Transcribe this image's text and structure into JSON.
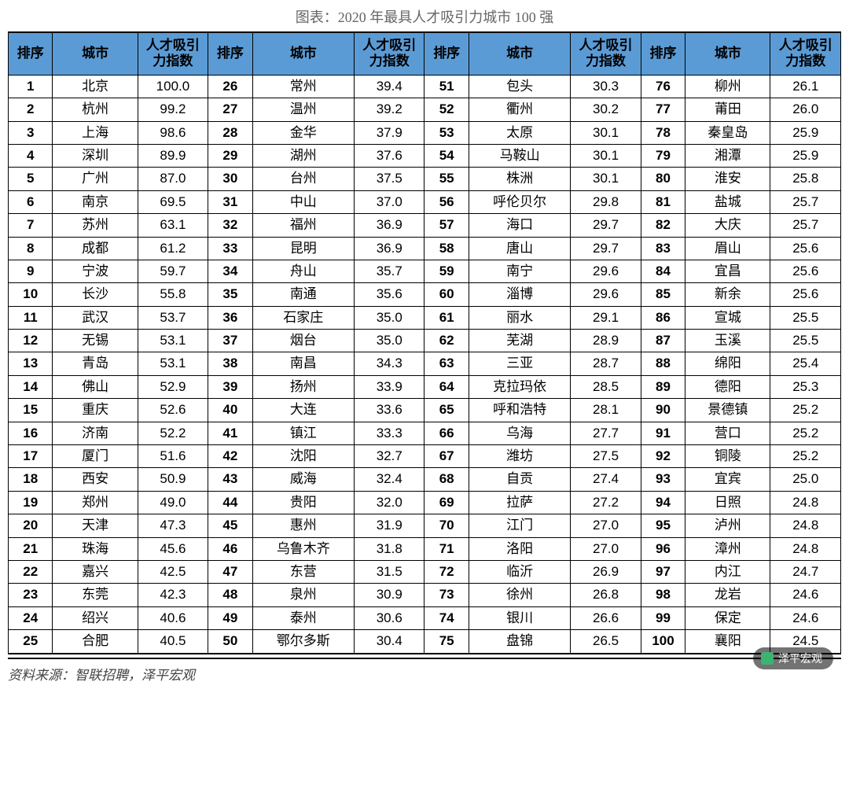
{
  "title": "图表：2020 年最具人才吸引力城市 100 强",
  "headers": {
    "rank": "排序",
    "city": "城市",
    "index": "人才吸引力指数"
  },
  "source": "资料来源：智联招聘，泽平宏观",
  "watermark": "泽平宏观",
  "colors": {
    "header_bg": "#5b9bd5",
    "border": "#000000",
    "title_text": "#666666",
    "body_bg": "#ffffff"
  },
  "rows": [
    {
      "r1": "1",
      "c1": "北京",
      "i1": "100.0",
      "r2": "26",
      "c2": "常州",
      "i2": "39.4",
      "r3": "51",
      "c3": "包头",
      "i3": "30.3",
      "r4": "76",
      "c4": "柳州",
      "i4": "26.1"
    },
    {
      "r1": "2",
      "c1": "杭州",
      "i1": "99.2",
      "r2": "27",
      "c2": "温州",
      "i2": "39.2",
      "r3": "52",
      "c3": "衢州",
      "i3": "30.2",
      "r4": "77",
      "c4": "莆田",
      "i4": "26.0"
    },
    {
      "r1": "3",
      "c1": "上海",
      "i1": "98.6",
      "r2": "28",
      "c2": "金华",
      "i2": "37.9",
      "r3": "53",
      "c3": "太原",
      "i3": "30.1",
      "r4": "78",
      "c4": "秦皇岛",
      "i4": "25.9"
    },
    {
      "r1": "4",
      "c1": "深圳",
      "i1": "89.9",
      "r2": "29",
      "c2": "湖州",
      "i2": "37.6",
      "r3": "54",
      "c3": "马鞍山",
      "i3": "30.1",
      "r4": "79",
      "c4": "湘潭",
      "i4": "25.9"
    },
    {
      "r1": "5",
      "c1": "广州",
      "i1": "87.0",
      "r2": "30",
      "c2": "台州",
      "i2": "37.5",
      "r3": "55",
      "c3": "株洲",
      "i3": "30.1",
      "r4": "80",
      "c4": "淮安",
      "i4": "25.8"
    },
    {
      "r1": "6",
      "c1": "南京",
      "i1": "69.5",
      "r2": "31",
      "c2": "中山",
      "i2": "37.0",
      "r3": "56",
      "c3": "呼伦贝尔",
      "i3": "29.8",
      "r4": "81",
      "c4": "盐城",
      "i4": "25.7"
    },
    {
      "r1": "7",
      "c1": "苏州",
      "i1": "63.1",
      "r2": "32",
      "c2": "福州",
      "i2": "36.9",
      "r3": "57",
      "c3": "海口",
      "i3": "29.7",
      "r4": "82",
      "c4": "大庆",
      "i4": "25.7"
    },
    {
      "r1": "8",
      "c1": "成都",
      "i1": "61.2",
      "r2": "33",
      "c2": "昆明",
      "i2": "36.9",
      "r3": "58",
      "c3": "唐山",
      "i3": "29.7",
      "r4": "83",
      "c4": "眉山",
      "i4": "25.6"
    },
    {
      "r1": "9",
      "c1": "宁波",
      "i1": "59.7",
      "r2": "34",
      "c2": "舟山",
      "i2": "35.7",
      "r3": "59",
      "c3": "南宁",
      "i3": "29.6",
      "r4": "84",
      "c4": "宜昌",
      "i4": "25.6"
    },
    {
      "r1": "10",
      "c1": "长沙",
      "i1": "55.8",
      "r2": "35",
      "c2": "南通",
      "i2": "35.6",
      "r3": "60",
      "c3": "淄博",
      "i3": "29.6",
      "r4": "85",
      "c4": "新余",
      "i4": "25.6"
    },
    {
      "r1": "11",
      "c1": "武汉",
      "i1": "53.7",
      "r2": "36",
      "c2": "石家庄",
      "i2": "35.0",
      "r3": "61",
      "c3": "丽水",
      "i3": "29.1",
      "r4": "86",
      "c4": "宣城",
      "i4": "25.5"
    },
    {
      "r1": "12",
      "c1": "无锡",
      "i1": "53.1",
      "r2": "37",
      "c2": "烟台",
      "i2": "35.0",
      "r3": "62",
      "c3": "芜湖",
      "i3": "28.9",
      "r4": "87",
      "c4": "玉溪",
      "i4": "25.5"
    },
    {
      "r1": "13",
      "c1": "青岛",
      "i1": "53.1",
      "r2": "38",
      "c2": "南昌",
      "i2": "34.3",
      "r3": "63",
      "c3": "三亚",
      "i3": "28.7",
      "r4": "88",
      "c4": "绵阳",
      "i4": "25.4"
    },
    {
      "r1": "14",
      "c1": "佛山",
      "i1": "52.9",
      "r2": "39",
      "c2": "扬州",
      "i2": "33.9",
      "r3": "64",
      "c3": "克拉玛依",
      "i3": "28.5",
      "r4": "89",
      "c4": "德阳",
      "i4": "25.3"
    },
    {
      "r1": "15",
      "c1": "重庆",
      "i1": "52.6",
      "r2": "40",
      "c2": "大连",
      "i2": "33.6",
      "r3": "65",
      "c3": "呼和浩特",
      "i3": "28.1",
      "r4": "90",
      "c4": "景德镇",
      "i4": "25.2"
    },
    {
      "r1": "16",
      "c1": "济南",
      "i1": "52.2",
      "r2": "41",
      "c2": "镇江",
      "i2": "33.3",
      "r3": "66",
      "c3": "乌海",
      "i3": "27.7",
      "r4": "91",
      "c4": "营口",
      "i4": "25.2"
    },
    {
      "r1": "17",
      "c1": "厦门",
      "i1": "51.6",
      "r2": "42",
      "c2": "沈阳",
      "i2": "32.7",
      "r3": "67",
      "c3": "潍坊",
      "i3": "27.5",
      "r4": "92",
      "c4": "铜陵",
      "i4": "25.2"
    },
    {
      "r1": "18",
      "c1": "西安",
      "i1": "50.9",
      "r2": "43",
      "c2": "威海",
      "i2": "32.4",
      "r3": "68",
      "c3": "自贡",
      "i3": "27.4",
      "r4": "93",
      "c4": "宜宾",
      "i4": "25.0"
    },
    {
      "r1": "19",
      "c1": "郑州",
      "i1": "49.0",
      "r2": "44",
      "c2": "贵阳",
      "i2": "32.0",
      "r3": "69",
      "c3": "拉萨",
      "i3": "27.2",
      "r4": "94",
      "c4": "日照",
      "i4": "24.8"
    },
    {
      "r1": "20",
      "c1": "天津",
      "i1": "47.3",
      "r2": "45",
      "c2": "惠州",
      "i2": "31.9",
      "r3": "70",
      "c3": "江门",
      "i3": "27.0",
      "r4": "95",
      "c4": "泸州",
      "i4": "24.8"
    },
    {
      "r1": "21",
      "c1": "珠海",
      "i1": "45.6",
      "r2": "46",
      "c2": "乌鲁木齐",
      "i2": "31.8",
      "r3": "71",
      "c3": "洛阳",
      "i3": "27.0",
      "r4": "96",
      "c4": "漳州",
      "i4": "24.8"
    },
    {
      "r1": "22",
      "c1": "嘉兴",
      "i1": "42.5",
      "r2": "47",
      "c2": "东营",
      "i2": "31.5",
      "r3": "72",
      "c3": "临沂",
      "i3": "26.9",
      "r4": "97",
      "c4": "内江",
      "i4": "24.7"
    },
    {
      "r1": "23",
      "c1": "东莞",
      "i1": "42.3",
      "r2": "48",
      "c2": "泉州",
      "i2": "30.9",
      "r3": "73",
      "c3": "徐州",
      "i3": "26.8",
      "r4": "98",
      "c4": "龙岩",
      "i4": "24.6"
    },
    {
      "r1": "24",
      "c1": "绍兴",
      "i1": "40.6",
      "r2": "49",
      "c2": "泰州",
      "i2": "30.6",
      "r3": "74",
      "c3": "银川",
      "i3": "26.6",
      "r4": "99",
      "c4": "保定",
      "i4": "24.6"
    },
    {
      "r1": "25",
      "c1": "合肥",
      "i1": "40.5",
      "r2": "50",
      "c2": "鄂尔多斯",
      "i2": "30.4",
      "r3": "75",
      "c3": "盘锦",
      "i3": "26.5",
      "r4": "100",
      "c4": "襄阳",
      "i4": "24.5"
    }
  ]
}
